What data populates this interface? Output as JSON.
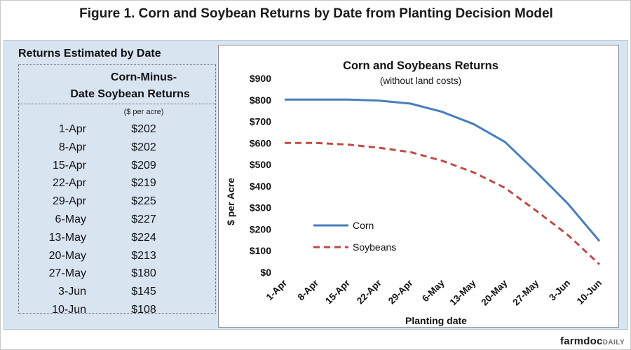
{
  "figure_title": "Figure 1. Corn and Soybean Returns by Date from Planting Decision Model",
  "table": {
    "title": "Returns Estimated by Date",
    "col_date": "Date",
    "col_returns_line1": "Corn-Minus-",
    "col_returns_line2": "Soybean Returns",
    "units": "($ per acre)",
    "rows": [
      {
        "date": "1-Apr",
        "value": "$202"
      },
      {
        "date": "8-Apr",
        "value": "$202"
      },
      {
        "date": "15-Apr",
        "value": "$209"
      },
      {
        "date": "22-Apr",
        "value": "$219"
      },
      {
        "date": "29-Apr",
        "value": "$225"
      },
      {
        "date": "6-May",
        "value": "$227"
      },
      {
        "date": "13-May",
        "value": "$224"
      },
      {
        "date": "20-May",
        "value": "$213"
      },
      {
        "date": "27-May",
        "value": "$180"
      },
      {
        "date": "3-Jun",
        "value": "$145"
      },
      {
        "date": "10-Jun",
        "value": "$108"
      }
    ]
  },
  "chart_data": {
    "type": "line",
    "title": "Corn and Soybeans Returns",
    "subtitle": "(without land costs)",
    "xlabel": "Planting date",
    "ylabel": "$ per Acre",
    "categories": [
      "1-Apr",
      "8-Apr",
      "15-Apr",
      "22-Apr",
      "29-Apr",
      "6-May",
      "13-May",
      "20-May",
      "27-May",
      "3-Jun",
      "10-Jun"
    ],
    "ylim": [
      0,
      900
    ],
    "yticks": [
      0,
      100,
      200,
      300,
      400,
      500,
      600,
      700,
      800,
      900
    ],
    "ytick_labels": [
      "$0",
      "$100",
      "$200",
      "$300",
      "$400",
      "$500",
      "$600",
      "$700",
      "$800",
      "$900"
    ],
    "grid": false,
    "legend_position": "lower-left",
    "series": [
      {
        "name": "Corn",
        "color": "#4a7ebb",
        "style": "solid",
        "values": [
          802,
          802,
          802,
          797,
          783,
          745,
          688,
          605,
          465,
          318,
          145
        ]
      },
      {
        "name": "Soybeans",
        "color": "#be4b48",
        "style": "dashed",
        "values": [
          600,
          600,
          593,
          578,
          558,
          518,
          464,
          392,
          285,
          173,
          37
        ]
      }
    ]
  },
  "brand": {
    "part1": "farmdoc",
    "part2": "DAILY"
  }
}
